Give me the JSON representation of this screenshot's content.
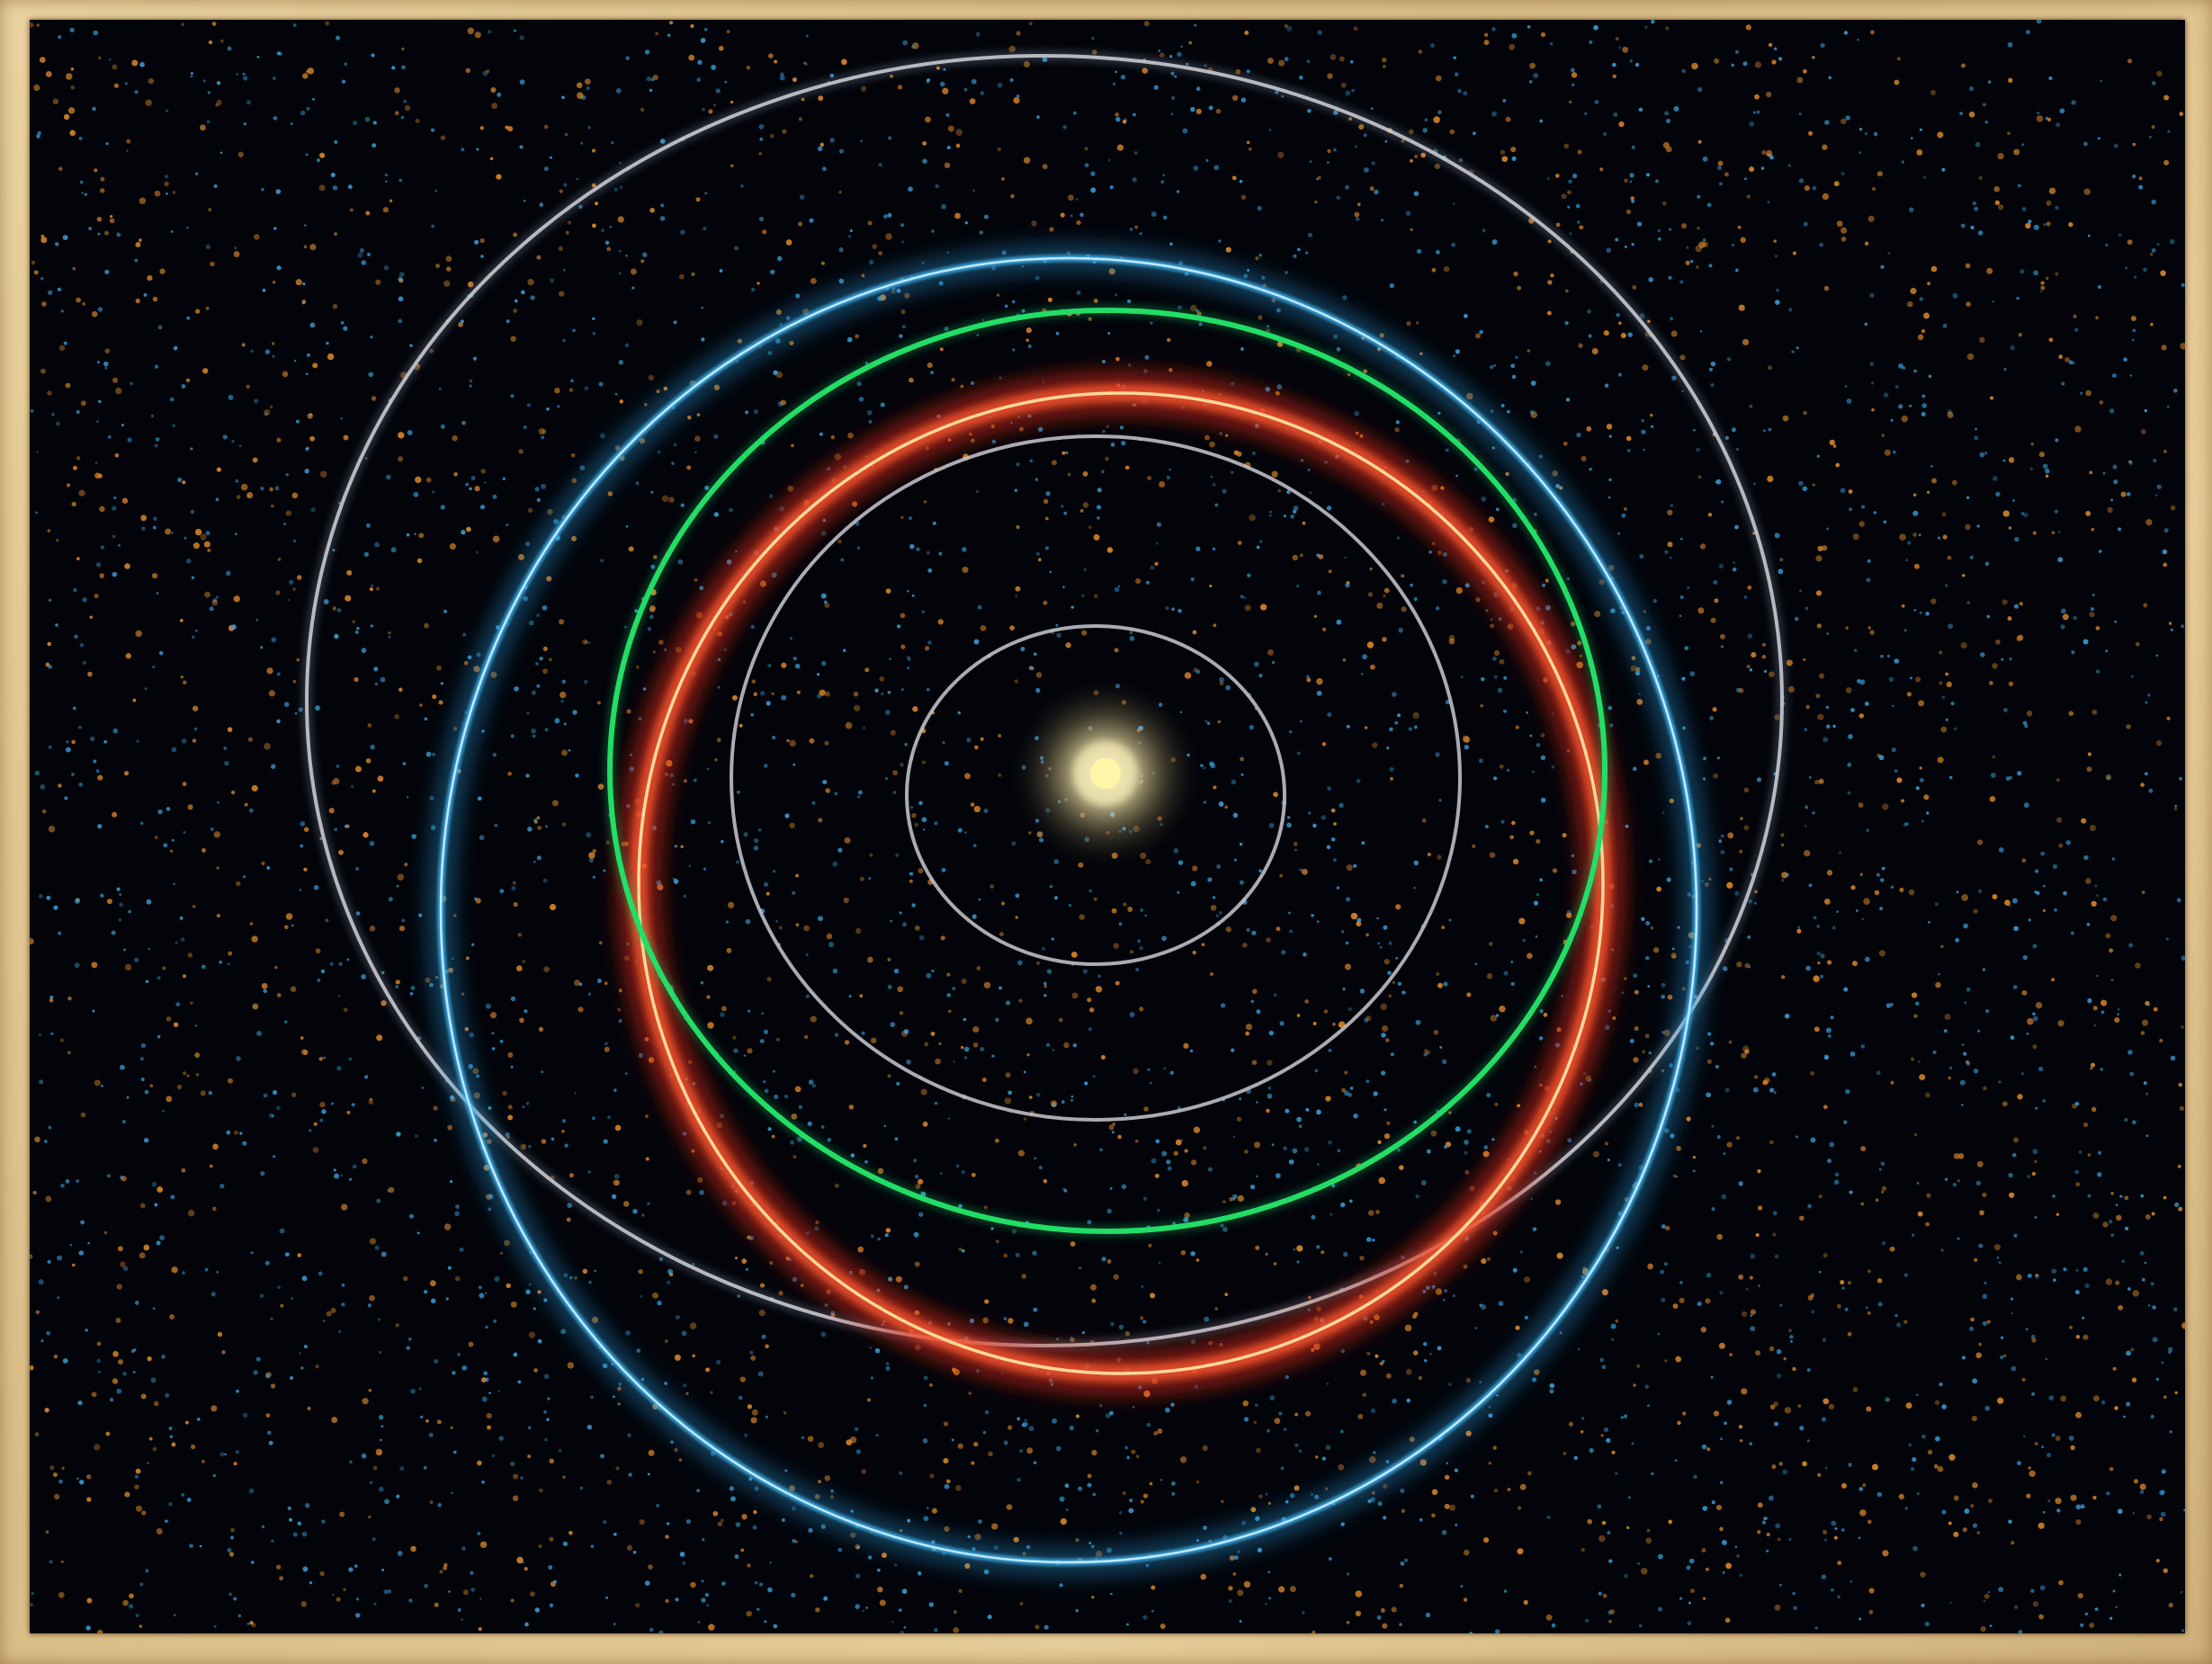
{
  "image": {
    "subject": "orbits-around-central-star",
    "colors": {
      "frame": "#e2c995",
      "space": "#02040a",
      "star_core": "#fff6a8",
      "star_glow": "#f3e7b2",
      "orbit_gray": "#c9c9cf",
      "orbit_blue": "#3fb4ee",
      "orbit_green": "#22dd66",
      "orbit_red_glow": "#e0301e",
      "orbit_red_core": "#ffd080",
      "dust_blue": "#3a9fd8",
      "dust_orange": "#e08a2a"
    },
    "orbits": [
      {
        "name": "inner-gray-orbit",
        "color": "orbit_gray"
      },
      {
        "name": "second-gray-orbit",
        "color": "orbit_gray"
      },
      {
        "name": "red-orbit",
        "color": "orbit_red_glow"
      },
      {
        "name": "green-orbit",
        "color": "orbit_green"
      },
      {
        "name": "blue-orbit",
        "color": "orbit_blue"
      },
      {
        "name": "outer-gray-orbit",
        "color": "orbit_gray"
      }
    ]
  }
}
